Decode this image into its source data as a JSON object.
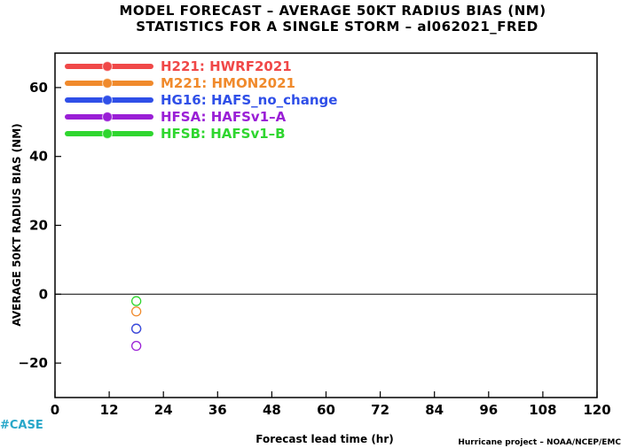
{
  "title_line1": "MODEL FORECAST – AVERAGE 50KT RADIUS BIAS (NM)",
  "title_line2": "STATISTICS FOR A SINGLE STORM – al062021_FRED",
  "case_tag": "#CASE",
  "credit": "Hurricane project – NOAA/NCEP/EMC",
  "chart_data": {
    "type": "scatter",
    "title": "MODEL FORECAST – AVERAGE 50KT RADIUS BIAS (NM)",
    "subtitle": "STATISTICS FOR A SINGLE STORM – al062021_FRED",
    "xlabel": "Forecast lead time (hr)",
    "ylabel": "AVERAGE 50KT RADIUS BIAS (NM)",
    "xlim": [
      0,
      120
    ],
    "ylim": [
      -30,
      70
    ],
    "xticks": [
      0,
      12,
      24,
      36,
      48,
      60,
      72,
      84,
      96,
      108,
      120
    ],
    "yticks": [
      -20,
      0,
      20,
      40,
      60
    ],
    "xtick_labels": [
      "0",
      "12",
      "24",
      "36",
      "48",
      "60",
      "72",
      "84",
      "96",
      "108",
      "120"
    ],
    "ytick_labels": [
      "−20",
      "0",
      "20",
      "40",
      "60"
    ],
    "zero_line": 0,
    "grid": false,
    "legend_position": "top-left",
    "series": [
      {
        "code": "H221",
        "name": "HWRF2021",
        "color": "#f04848",
        "x": [
          18
        ],
        "y": [
          -10
        ]
      },
      {
        "code": "M221",
        "name": "HMON2021",
        "color": "#f08a2c",
        "x": [
          18
        ],
        "y": [
          -5
        ]
      },
      {
        "code": "HG16",
        "name": "HAFS_no_change",
        "color": "#2f4fe8",
        "x": [
          18
        ],
        "y": [
          -10
        ]
      },
      {
        "code": "HFSA",
        "name": "HAFSv1–A",
        "color": "#9a1fd6",
        "x": [
          18
        ],
        "y": [
          -15
        ]
      },
      {
        "code": "HFSB",
        "name": "HAFSv1–B",
        "color": "#2fd62f",
        "x": [
          18
        ],
        "y": [
          -2
        ]
      }
    ]
  }
}
